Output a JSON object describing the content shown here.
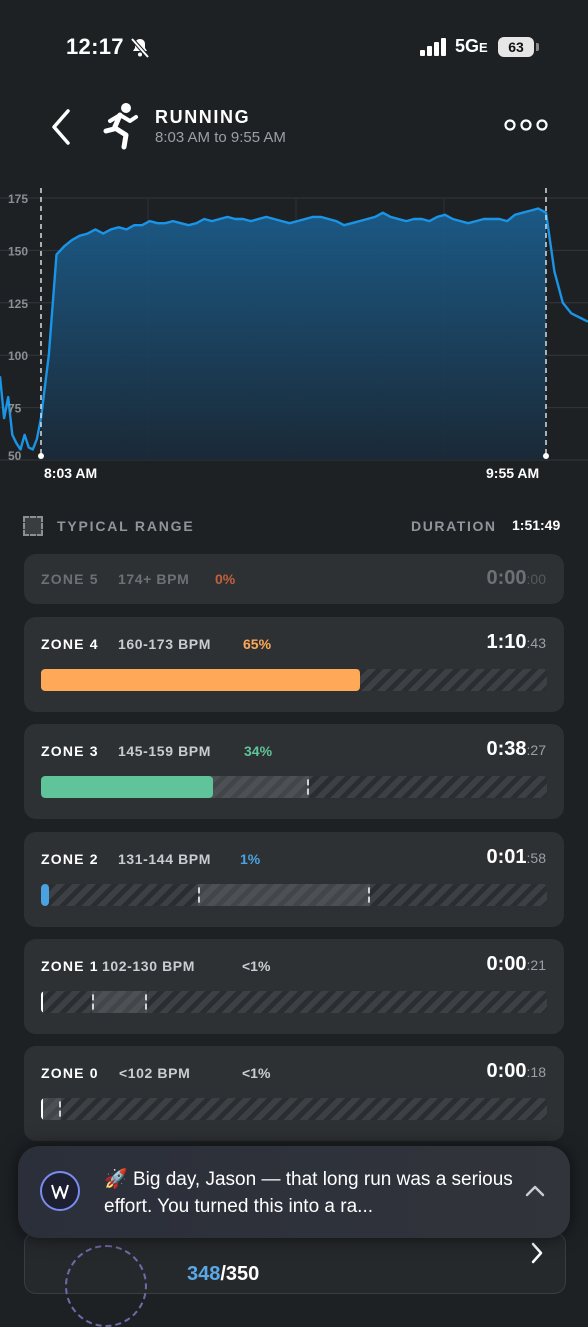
{
  "status_bar": {
    "time": "12:17",
    "network": "5G",
    "network_suffix": "E",
    "battery": "63"
  },
  "header": {
    "title": "RUNNING",
    "subtitle": "8:03 AM to 9:55 AM"
  },
  "chart_data": {
    "type": "line",
    "ylim": [
      50,
      175
    ],
    "yticks": [
      "175",
      "150",
      "125",
      "100",
      "75",
      "50"
    ],
    "start_label": "8:03 AM",
    "end_label": "9:55 AM",
    "series": [
      {
        "color": "#1a94e6",
        "values": [
          90,
          70,
          80,
          62,
          58,
          55,
          62,
          56,
          55,
          60,
          70,
          100,
          148,
          152,
          155,
          157,
          158,
          160,
          158,
          160,
          161,
          160,
          162,
          162,
          164,
          163,
          163,
          164,
          163,
          162,
          163,
          165,
          164,
          165,
          166,
          165,
          165,
          164,
          165,
          166,
          165,
          164,
          163,
          164,
          165,
          166,
          166,
          165,
          164,
          162,
          163,
          164,
          165,
          166,
          168,
          166,
          165,
          164,
          165,
          165,
          164,
          166,
          167,
          165,
          164,
          163,
          164,
          165,
          165,
          165,
          164,
          167,
          168,
          169,
          170,
          168,
          140,
          125,
          120,
          118,
          116
        ]
      }
    ]
  },
  "legend": {
    "typical_label": "TYPICAL RANGE",
    "duration_label": "DURATION",
    "duration_value": "1:51:49"
  },
  "zones": [
    {
      "name": "ZONE 5",
      "range": "174+ BPM",
      "pct": "0%",
      "time_main": "0:00",
      "time_sec": ":00",
      "fill_fraction": 0.0,
      "typ_start": null,
      "typ_end": null,
      "color": "#c2603c"
    },
    {
      "name": "ZONE 4",
      "range": "160-173 BPM",
      "pct": "65%",
      "time_main": "1:10",
      "time_sec": ":43",
      "fill_fraction": 0.63,
      "typ_start": 0.0,
      "typ_end": 0.02,
      "color": "#ffa857"
    },
    {
      "name": "ZONE 3",
      "range": "145-159 BPM",
      "pct": "34%",
      "time_main": "0:38",
      "time_sec": ":27",
      "fill_fraction": 0.34,
      "typ_start": 0.04,
      "typ_end": 0.53,
      "color": "#5fc49a"
    },
    {
      "name": "ZONE 2",
      "range": "131-144 BPM",
      "pct": "1%",
      "time_main": "0:01",
      "time_sec": ":58",
      "fill_fraction": 0.015,
      "typ_start": 0.31,
      "typ_end": 0.65,
      "color": "#4aa3e0"
    },
    {
      "name": "ZONE 1",
      "range": "102-130 BPM",
      "pct": "<1%",
      "time_main": "0:00",
      "time_sec": ":21",
      "fill_fraction": 0.003,
      "typ_start": 0.1,
      "typ_end": 0.21,
      "color": "#ffffff"
    },
    {
      "name": "ZONE 0",
      "range": "<102 BPM",
      "pct": "<1%",
      "time_main": "0:00",
      "time_sec": ":18",
      "fill_fraction": 0.003,
      "typ_start": 0.0,
      "typ_end": 0.04,
      "color": "#ffffff"
    }
  ],
  "coach": {
    "emoji": "🚀",
    "message": "Big day, Jason — that long run was a serious effort.  You turned this into a ra..."
  },
  "bottom": {
    "current": "348",
    "total": "/350"
  }
}
